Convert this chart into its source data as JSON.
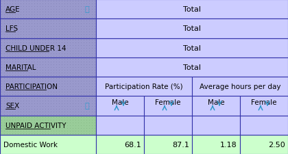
{
  "header_col_bg": "#9999cc",
  "value_col_bg": "#ccccff",
  "activity_row_bg": "#99cc99",
  "data_row_bg": "#ccffcc",
  "border_color": "#3333aa",
  "rows_filter": [
    "AGE",
    "LFS",
    "CHILD UNDER 14",
    "MARITAL"
  ],
  "filter_values": [
    "Total",
    "Total",
    "Total",
    "Total"
  ],
  "participation_header": "Participation Rate (%)",
  "avg_hours_header": "Average hours per day",
  "sex_label": "SEX",
  "participation_label": "PARTICIPATION",
  "unpaid_label": "UNPAID ACTIVITY",
  "col_headers": [
    "Male",
    "Female",
    "Male",
    "Female"
  ],
  "data_row_label": "Domestic Work",
  "data_values": [
    "68.1",
    "87.1",
    "1.18",
    "2.50"
  ],
  "arrow_color": "#3399cc",
  "info_icon_color": "#3399cc",
  "dot_color_hdr": "#7777aa",
  "dot_color_act": "#77aa77"
}
